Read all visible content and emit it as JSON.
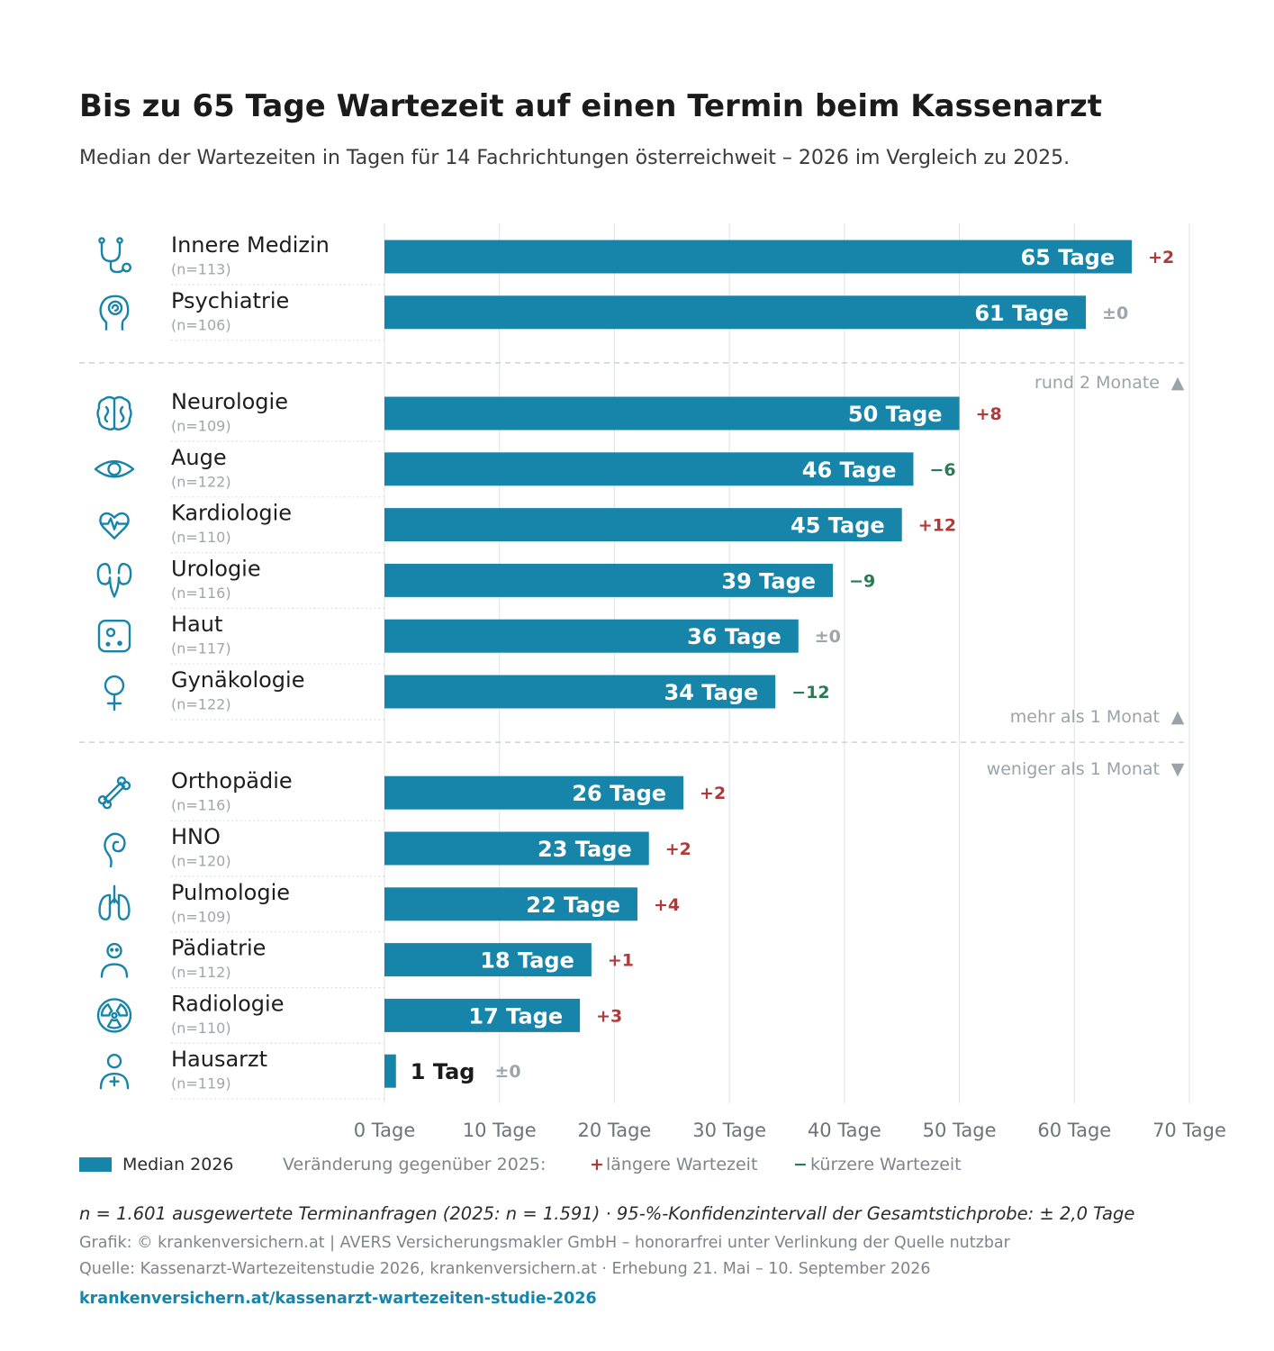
{
  "colors": {
    "bar": "#1785aa",
    "increase": "#b03a3a",
    "decrease": "#2a7a55",
    "neutral": "#9ba5ab",
    "icon": "#1785aa",
    "text": "#1b1b1b"
  },
  "chart_data": {
    "type": "bar",
    "orientation": "horizontal",
    "title": "Bis zu 65 Tage Wartezeit auf einen Termin beim Kassenarzt",
    "subtitle": "Median der Wartezeiten in Tagen für 14 Fachrichtungen österreichweit – 2026 im Vergleich zu 2025.",
    "xlim": [
      0,
      70
    ],
    "x_tick_values": [
      0,
      10,
      20,
      30,
      40,
      50,
      60,
      70
    ],
    "x_tick_labels": [
      "0 Tage",
      "10 Tage",
      "20 Tage",
      "30 Tage",
      "40 Tage",
      "50 Tage",
      "60 Tage",
      "70 Tage"
    ],
    "grid": true,
    "legend_position": "bottom",
    "series_name": "Median 2026",
    "groups": [
      {
        "label": "rund 2 Monate",
        "arrow": "▲",
        "rows": [
          {
            "category": "Innere Medizin",
            "n": "(n=113)",
            "value": 65,
            "value_label": "65 Tage",
            "change": 2,
            "change_label": "+2",
            "icon": "stethoscope-icon"
          },
          {
            "category": "Psychiatrie",
            "n": "(n=106)",
            "value": 61,
            "value_label": "61 Tage",
            "change": 0,
            "change_label": "±0",
            "icon": "head-spiral-icon"
          }
        ]
      },
      {
        "label": "mehr als 1 Monat",
        "arrow": "▲",
        "rows": [
          {
            "category": "Neurologie",
            "n": "(n=109)",
            "value": 50,
            "value_label": "50 Tage",
            "change": 8,
            "change_label": "+8",
            "icon": "brain-icon"
          },
          {
            "category": "Auge",
            "n": "(n=122)",
            "value": 46,
            "value_label": "46 Tage",
            "change": -6,
            "change_label": "−6",
            "icon": "eye-icon"
          },
          {
            "category": "Kardiologie",
            "n": "(n=110)",
            "value": 45,
            "value_label": "45 Tage",
            "change": 12,
            "change_label": "+12",
            "icon": "heart-pulse-icon"
          },
          {
            "category": "Urologie",
            "n": "(n=116)",
            "value": 39,
            "value_label": "39 Tage",
            "change": -9,
            "change_label": "−9",
            "icon": "kidneys-icon"
          },
          {
            "category": "Haut",
            "n": "(n=117)",
            "value": 36,
            "value_label": "36 Tage",
            "change": 0,
            "change_label": "±0",
            "icon": "skin-icon"
          },
          {
            "category": "Gynäkologie",
            "n": "(n=122)",
            "value": 34,
            "value_label": "34 Tage",
            "change": -12,
            "change_label": "−12",
            "icon": "female-symbol-icon"
          }
        ]
      },
      {
        "label": "weniger als 1 Monat",
        "arrow": "▼",
        "rows": [
          {
            "category": "Orthopädie",
            "n": "(n=116)",
            "value": 26,
            "value_label": "26 Tage",
            "change": 2,
            "change_label": "+2",
            "icon": "bone-icon"
          },
          {
            "category": "HNO",
            "n": "(n=120)",
            "value": 23,
            "value_label": "23 Tage",
            "change": 2,
            "change_label": "+2",
            "icon": "ear-icon"
          },
          {
            "category": "Pulmologie",
            "n": "(n=109)",
            "value": 22,
            "value_label": "22 Tage",
            "change": 4,
            "change_label": "+4",
            "icon": "lungs-icon"
          },
          {
            "category": "Pädiatrie",
            "n": "(n=112)",
            "value": 18,
            "value_label": "18 Tage",
            "change": 1,
            "change_label": "+1",
            "icon": "child-icon"
          },
          {
            "category": "Radiologie",
            "n": "(n=110)",
            "value": 17,
            "value_label": "17 Tage",
            "change": 3,
            "change_label": "+3",
            "icon": "radiation-icon"
          },
          {
            "category": "Hausarzt",
            "n": "(n=119)",
            "value": 1,
            "value_label": "1 Tag",
            "change": 0,
            "change_label": "±0",
            "icon": "doctor-icon"
          }
        ]
      }
    ]
  },
  "legend": {
    "change_heading": "Veränderung gegenüber 2025:",
    "increase_symbol": "+",
    "increase_label": "längere Wartezeit",
    "decrease_symbol": "−",
    "decrease_label": "kürzere Wartezeit"
  },
  "footer": {
    "sample_note": "n = 1.601 ausgewertete Terminanfragen (2025: n = 1.591) · 95-%-Konfidenzintervall der Gesamtstichprobe: ± 2,0 Tage",
    "credit": "Grafik: © krankenversichern.at | AVERS Versicherungsmakler GmbH – honorarfrei unter Verlinkung der Quelle nutzbar",
    "source": "Quelle: Kassenarzt-Wartezeitenstudie 2026, krankenversichern.at · Erhebung 21. Mai – 10. September 2026",
    "link": "krankenversichern.at/kassenarzt-wartezeiten-studie-2026"
  }
}
